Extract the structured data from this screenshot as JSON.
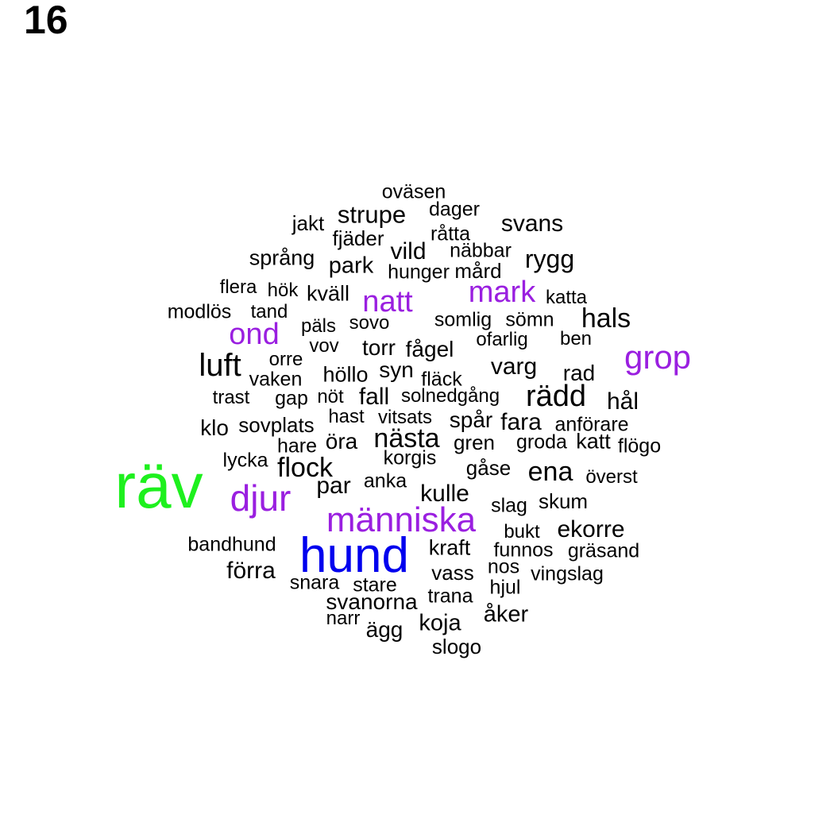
{
  "panel_number": "16",
  "colors": {
    "default": "#000000",
    "purple": "#9a1fe0",
    "blue": "#0000ee",
    "green": "#1ef01e"
  },
  "words": [
    {
      "text": "räv",
      "color": "green"
    },
    {
      "text": "hund",
      "color": "blue"
    },
    {
      "text": "människa",
      "color": "purple"
    },
    {
      "text": "djur",
      "color": "purple"
    },
    {
      "text": "natt",
      "color": "purple"
    },
    {
      "text": "mark",
      "color": "purple"
    },
    {
      "text": "grop",
      "color": "purple"
    },
    {
      "text": "ond",
      "color": "purple"
    },
    {
      "text": "oväsen"
    },
    {
      "text": "dager"
    },
    {
      "text": "jakt"
    },
    {
      "text": "strupe"
    },
    {
      "text": "svans"
    },
    {
      "text": "fjäder"
    },
    {
      "text": "råtta"
    },
    {
      "text": "språng"
    },
    {
      "text": "vild"
    },
    {
      "text": "näbbar"
    },
    {
      "text": "rygg"
    },
    {
      "text": "park"
    },
    {
      "text": "hunger"
    },
    {
      "text": "mård"
    },
    {
      "text": "flera"
    },
    {
      "text": "hök"
    },
    {
      "text": "kväll"
    },
    {
      "text": "katta"
    },
    {
      "text": "modlös"
    },
    {
      "text": "tand"
    },
    {
      "text": "hals"
    },
    {
      "text": "päls"
    },
    {
      "text": "sovo"
    },
    {
      "text": "somlig"
    },
    {
      "text": "sömn"
    },
    {
      "text": "vov"
    },
    {
      "text": "torr"
    },
    {
      "text": "fågel"
    },
    {
      "text": "ofarlig"
    },
    {
      "text": "ben"
    },
    {
      "text": "luft"
    },
    {
      "text": "orre"
    },
    {
      "text": "vaken"
    },
    {
      "text": "höllo"
    },
    {
      "text": "syn"
    },
    {
      "text": "fläck"
    },
    {
      "text": "varg"
    },
    {
      "text": "rad"
    },
    {
      "text": "trast"
    },
    {
      "text": "gap"
    },
    {
      "text": "nöt"
    },
    {
      "text": "fall"
    },
    {
      "text": "solnedgång"
    },
    {
      "text": "rädd"
    },
    {
      "text": "hål"
    },
    {
      "text": "hast"
    },
    {
      "text": "vitsats"
    },
    {
      "text": "klo"
    },
    {
      "text": "sovplats"
    },
    {
      "text": "spår"
    },
    {
      "text": "fara"
    },
    {
      "text": "anförare"
    },
    {
      "text": "hare"
    },
    {
      "text": "öra"
    },
    {
      "text": "nästa"
    },
    {
      "text": "gren"
    },
    {
      "text": "groda"
    },
    {
      "text": "katt"
    },
    {
      "text": "flögo"
    },
    {
      "text": "lycka"
    },
    {
      "text": "korgis"
    },
    {
      "text": "flock"
    },
    {
      "text": "gåse"
    },
    {
      "text": "ena"
    },
    {
      "text": "överst"
    },
    {
      "text": "par"
    },
    {
      "text": "anka"
    },
    {
      "text": "kulle"
    },
    {
      "text": "slag"
    },
    {
      "text": "skum"
    },
    {
      "text": "bukt"
    },
    {
      "text": "ekorre"
    },
    {
      "text": "bandhund"
    },
    {
      "text": "kraft"
    },
    {
      "text": "funnos"
    },
    {
      "text": "gräsand"
    },
    {
      "text": "förra"
    },
    {
      "text": "nos"
    },
    {
      "text": "vass"
    },
    {
      "text": "vingslag"
    },
    {
      "text": "snara"
    },
    {
      "text": "stare"
    },
    {
      "text": "hjul"
    },
    {
      "text": "svanorna"
    },
    {
      "text": "trana"
    },
    {
      "text": "narr"
    },
    {
      "text": "ägg"
    },
    {
      "text": "koja"
    },
    {
      "text": "åker"
    },
    {
      "text": "slogo"
    }
  ]
}
